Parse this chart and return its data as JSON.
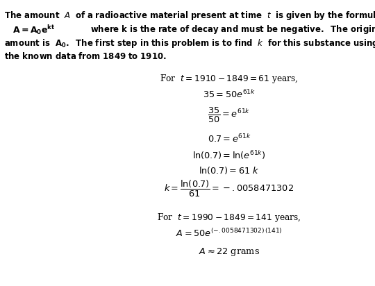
{
  "bg_color": "#ffffff",
  "text_color": "#000000",
  "figsize": [
    5.4,
    4.12
  ],
  "dpi": 100,
  "fs_bold": 8.5,
  "fs_math": 8.8
}
